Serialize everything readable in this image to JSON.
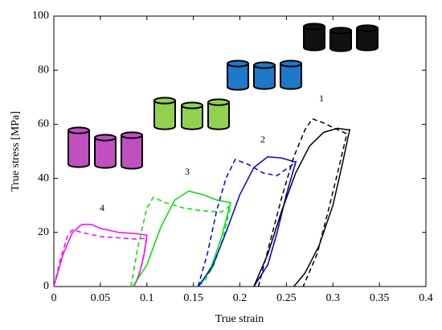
{
  "chart_data": {
    "type": "line",
    "xlabel": "True strain",
    "ylabel": "True stress [MPa]",
    "xlim": [
      0,
      0.4
    ],
    "ylim": [
      0,
      100
    ],
    "xticks": [
      0,
      0.05,
      0.1,
      0.15,
      0.2,
      0.25,
      0.3,
      0.35,
      0.4
    ],
    "yticks": [
      0,
      20,
      40,
      60,
      80,
      100
    ],
    "annotations": [
      "1",
      "2",
      "3",
      "4"
    ],
    "series": [
      {
        "color": "#ff00ff",
        "dashed": false,
        "x": [
          0,
          0.01,
          0.02,
          0.03,
          0.04,
          0.05,
          0.07,
          0.09,
          0.1,
          0.1,
          0.097,
          0.093,
          0.089,
          0.086
        ],
        "values": [
          0,
          12,
          20,
          23,
          23,
          21.5,
          20,
          19.5,
          19,
          19,
          12,
          6,
          2,
          0
        ]
      },
      {
        "color": "#ff00ff",
        "dashed": true,
        "x": [
          0,
          0.007,
          0.015,
          0.02,
          0.03,
          0.05,
          0.07,
          0.09,
          0.1,
          0.096,
          0.092,
          0.088,
          0.085
        ],
        "values": [
          0,
          10,
          19,
          21,
          20,
          18.5,
          18,
          17.5,
          18,
          10,
          5,
          1.5,
          0
        ]
      },
      {
        "color": "#00e000",
        "dashed": false,
        "x": [
          0.085,
          0.1,
          0.115,
          0.13,
          0.145,
          0.16,
          0.175,
          0.19,
          0.19,
          0.18,
          0.17,
          0.16,
          0.155
        ],
        "values": [
          0,
          8,
          22,
          32,
          35.3,
          34,
          32,
          31,
          31,
          18,
          8,
          2,
          0
        ]
      },
      {
        "color": "#00e000",
        "dashed": true,
        "x": [
          0.083,
          0.09,
          0.1,
          0.107,
          0.12,
          0.14,
          0.16,
          0.18,
          0.19,
          0.182,
          0.172,
          0.162,
          0.155
        ],
        "values": [
          0,
          14,
          29,
          33,
          31,
          29,
          28,
          27.5,
          30,
          18,
          8,
          2,
          0
        ]
      },
      {
        "color": "#0000dd",
        "dashed": false,
        "x": [
          0.155,
          0.17,
          0.185,
          0.2,
          0.215,
          0.23,
          0.245,
          0.26,
          0.26,
          0.25,
          0.24,
          0.23,
          0.215
        ],
        "values": [
          0,
          7,
          20,
          34,
          44,
          48,
          47.5,
          46,
          46,
          34,
          20,
          8,
          0
        ]
      },
      {
        "color": "#0000dd",
        "dashed": true,
        "x": [
          0.155,
          0.165,
          0.175,
          0.185,
          0.195,
          0.21,
          0.225,
          0.24,
          0.26,
          0.25,
          0.24,
          0.23,
          0.215
        ],
        "values": [
          0,
          12,
          28,
          40,
          47,
          45,
          42,
          41,
          46,
          34,
          20,
          8,
          0
        ]
      },
      {
        "color": "#000000",
        "dashed": false,
        "x": [
          0.215,
          0.23,
          0.245,
          0.26,
          0.275,
          0.29,
          0.305,
          0.315,
          0.318,
          0.31,
          0.3,
          0.285,
          0.27,
          0.258
        ],
        "values": [
          0,
          12,
          28,
          42,
          52,
          57,
          58.5,
          58,
          58,
          45,
          30,
          15,
          5,
          0
        ]
      },
      {
        "color": "#000000",
        "dashed": true,
        "x": [
          0.22,
          0.232,
          0.245,
          0.258,
          0.27,
          0.278,
          0.29,
          0.305,
          0.315,
          0.305,
          0.295,
          0.283,
          0.268
        ],
        "values": [
          0,
          16,
          33,
          48,
          58,
          62,
          60.5,
          58,
          56.5,
          42,
          28,
          12,
          0
        ]
      }
    ]
  }
}
